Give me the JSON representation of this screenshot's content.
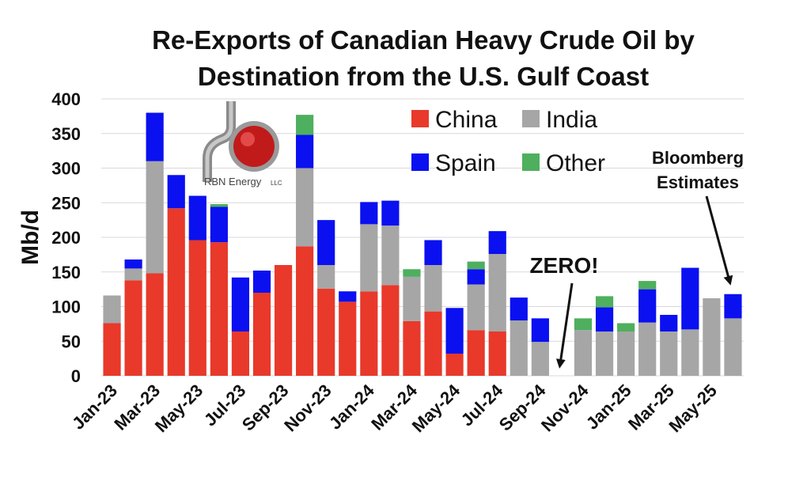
{
  "chart_data": {
    "type": "bar",
    "stacked": true,
    "title_lines": [
      "Re-Exports of Canadian Heavy Crude Oil by",
      "Destination from the U.S. Gulf Coast"
    ],
    "ylabel": "Mb/d",
    "ylim": [
      0,
      400
    ],
    "yticks": [
      0,
      50,
      100,
      150,
      200,
      250,
      300,
      350,
      400
    ],
    "grid": true,
    "legend_position": "top-right",
    "categories": [
      "Jan-23",
      "Feb-23",
      "Mar-23",
      "Apr-23",
      "May-23",
      "Jun-23",
      "Jul-23",
      "Aug-23",
      "Sep-23",
      "Oct-23",
      "Nov-23",
      "Dec-23",
      "Jan-24",
      "Feb-24",
      "Mar-24",
      "Apr-24",
      "May-24",
      "Jun-24",
      "Jul-24",
      "Aug-24",
      "Sep-24",
      "Oct-24",
      "Nov-24",
      "Dec-24",
      "Jan-25",
      "Feb-25",
      "Mar-25",
      "Apr-25",
      "May-25",
      "Jun-25"
    ],
    "xtick_labels": [
      "Jan-23",
      "",
      "Mar-23",
      "",
      "May-23",
      "",
      "Jul-23",
      "",
      "Sep-23",
      "",
      "Nov-23",
      "",
      "Jan-24",
      "",
      "Mar-24",
      "",
      "May-24",
      "",
      "Jul-24",
      "",
      "Sep-24",
      "",
      "Nov-24",
      "",
      "Jan-25",
      "",
      "Mar-25",
      "",
      "May-25",
      ""
    ],
    "series": [
      {
        "name": "China",
        "color": "#E8392B",
        "values": [
          76,
          138,
          148,
          242,
          196,
          193,
          64,
          120,
          160,
          187,
          126,
          107,
          122,
          131,
          79,
          93,
          32,
          66,
          64,
          0,
          0,
          0,
          0,
          0,
          0,
          0,
          0,
          0,
          0,
          0
        ]
      },
      {
        "name": "India",
        "color": "#A6A6A6",
        "values": [
          40,
          17,
          162,
          0,
          0,
          0,
          0,
          0,
          0,
          113,
          34,
          0,
          97,
          86,
          64,
          67,
          0,
          66,
          112,
          80,
          49,
          0,
          66,
          64,
          64,
          77,
          64,
          67,
          112,
          83
        ]
      },
      {
        "name": "Spain",
        "color": "#0A10F0",
        "values": [
          0,
          13,
          70,
          48,
          64,
          51,
          78,
          32,
          0,
          48,
          65,
          15,
          32,
          36,
          0,
          36,
          66,
          22,
          33,
          33,
          34,
          0,
          0,
          35,
          0,
          48,
          24,
          89,
          0,
          35
        ]
      },
      {
        "name": "Other",
        "color": "#4EAF5E",
        "values": [
          0,
          0,
          0,
          0,
          0,
          4,
          0,
          0,
          0,
          29,
          0,
          0,
          0,
          0,
          11,
          0,
          0,
          11,
          0,
          0,
          0,
          0,
          17,
          16,
          12,
          12,
          0,
          0,
          0,
          0
        ]
      }
    ],
    "annotations": [
      {
        "text": "ZERO!",
        "category": "Oct-24"
      },
      {
        "text_lines": [
          "Bloomberg",
          "Estimates"
        ],
        "category": "Jun-25"
      }
    ]
  },
  "logo": {
    "name": "RBN Energy",
    "suffix": "LLC"
  }
}
